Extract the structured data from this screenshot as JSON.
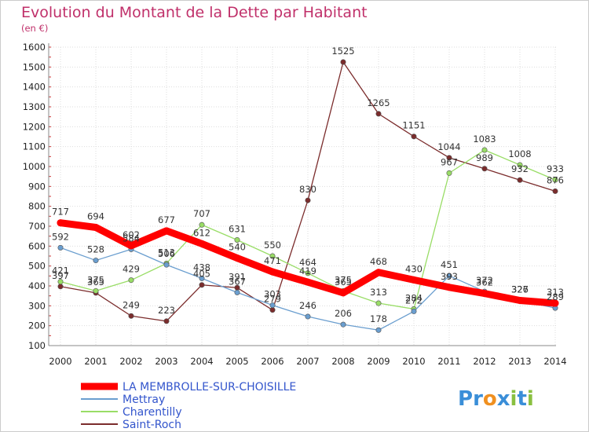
{
  "chart_data": {
    "type": "line",
    "title": "Evolution du Montant de la Dette par Habitant",
    "subtitle": "(en €)",
    "xlabel": "",
    "ylabel": "",
    "x": [
      "2000",
      "2001",
      "2002",
      "2003",
      "2004",
      "2005",
      "2006",
      "2007",
      "2008",
      "2009",
      "2010",
      "2011",
      "2012",
      "2013",
      "2014"
    ],
    "ylim": [
      100,
      1600
    ],
    "yticks": [
      "100",
      "200",
      "300",
      "400",
      "500",
      "600",
      "700",
      "800",
      "900",
      "1000",
      "1100",
      "1200",
      "1300",
      "1400",
      "1500",
      "1600"
    ],
    "grid": true,
    "legend_position": "bottom-left",
    "series": [
      {
        "name": "LA MEMBROLLE-SUR-CHOISILLE",
        "color": "#ff0000",
        "values": [
          717,
          694,
          602,
          677,
          612,
          540,
          471,
          419,
          365,
          468,
          430,
          393,
          362,
          327,
          313
        ]
      },
      {
        "name": "Mettray",
        "color": "#6a9ecf",
        "values": [
          592,
          528,
          584,
          506,
          438,
          367,
          303,
          246,
          206,
          178,
          272,
          451,
          372,
          326,
          289
        ]
      },
      {
        "name": "Charentilly",
        "color": "#99dd66",
        "values": [
          421,
          375,
          429,
          513,
          707,
          631,
          550,
          464,
          375,
          313,
          284,
          967,
          1083,
          1008,
          933
        ]
      },
      {
        "name": "Saint-Roch",
        "color": "#7b2c2c",
        "values": [
          397,
          365,
          249,
          223,
          405,
          391,
          279,
          830,
          1525,
          1265,
          1151,
          1044,
          989,
          932,
          876
        ]
      }
    ]
  },
  "logo": {
    "letters": [
      "P",
      "r",
      "o",
      "x",
      "i",
      "t",
      "i"
    ],
    "colors": [
      "#3a8ed8",
      "#3a8ed8",
      "#f09020",
      "#3a8ed8",
      "#8ac040",
      "#3a8ed8",
      "#8ac040"
    ]
  }
}
